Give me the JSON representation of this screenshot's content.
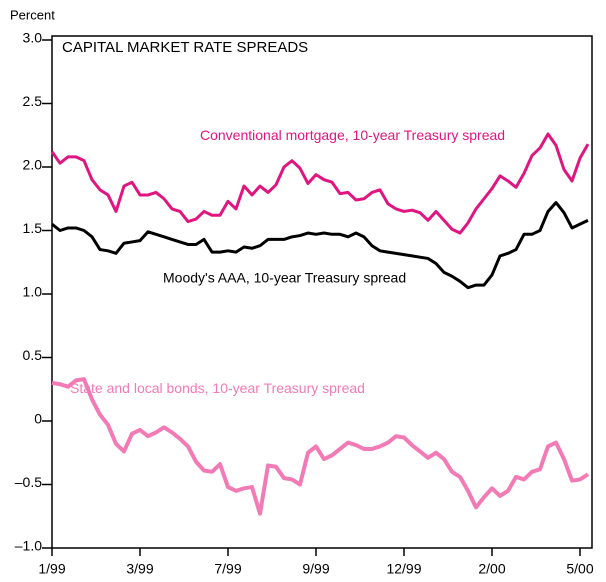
{
  "chart_data": {
    "type": "line",
    "title": "CAPITAL MARKET RATE SPREADS",
    "y_label": "Percent",
    "x": [
      0,
      1,
      2,
      3,
      4,
      5,
      6,
      7,
      8,
      9,
      10,
      11,
      12,
      13,
      14,
      15,
      16,
      17,
      18,
      19,
      20,
      21,
      22,
      23,
      24,
      25,
      26,
      27,
      28,
      29,
      30,
      31,
      32,
      33,
      34,
      35,
      36,
      37,
      38,
      39,
      40,
      41,
      42,
      43,
      44,
      45,
      46,
      47,
      48,
      49,
      50,
      51,
      52,
      53,
      54,
      55,
      56,
      57,
      58,
      59,
      60,
      61,
      62,
      63,
      64,
      65,
      66,
      67
    ],
    "xlim": [
      0,
      67.5
    ],
    "xticks": [
      {
        "value": 0,
        "label": "1/99"
      },
      {
        "value": 11,
        "label": "3/99"
      },
      {
        "value": 22,
        "label": "7/99"
      },
      {
        "value": 33,
        "label": "9/99"
      },
      {
        "value": 44,
        "label": "12/99"
      },
      {
        "value": 55,
        "label": "2/00"
      },
      {
        "value": 66,
        "label": "5/00"
      }
    ],
    "ylim": [
      -1,
      3
    ],
    "yticks": [
      {
        "value": 3,
        "label": "3.0"
      },
      {
        "value": 2.5,
        "label": "2.5"
      },
      {
        "value": 2,
        "label": "2.0"
      },
      {
        "value": 1.5,
        "label": "1.5"
      },
      {
        "value": 1,
        "label": "1.0"
      },
      {
        "value": 0.5,
        "label": "0.5"
      },
      0,
      {
        "value": -0.5,
        "label": "–0.5"
      },
      {
        "value": -1,
        "label": "–1.0"
      }
    ],
    "series": [
      {
        "name": "Conventional mortgage, 10-year Treasury spread",
        "color": "#e0157f",
        "values": [
          2.12,
          2.03,
          2.08,
          2.08,
          2.05,
          1.9,
          1.82,
          1.78,
          1.65,
          1.85,
          1.88,
          1.78,
          1.78,
          1.8,
          1.75,
          1.67,
          1.65,
          1.57,
          1.59,
          1.65,
          1.62,
          1.62,
          1.73,
          1.67,
          1.85,
          1.78,
          1.85,
          1.8,
          1.86,
          2.0,
          2.05,
          1.99,
          1.87,
          1.94,
          1.9,
          1.88,
          1.79,
          1.8,
          1.74,
          1.75,
          1.8,
          1.82,
          1.71,
          1.67,
          1.65,
          1.66,
          1.64,
          1.58,
          1.65,
          1.58,
          1.51,
          1.48,
          1.56,
          1.67,
          1.75,
          1.83,
          1.93,
          1.89,
          1.84,
          1.95,
          2.09,
          2.15,
          2.26,
          2.17,
          1.98,
          1.89,
          2.07,
          2.18
        ]
      },
      {
        "name": "Moody's AAA, 10-year Treasury spread",
        "color": "#000000",
        "values": [
          1.55,
          1.5,
          1.52,
          1.52,
          1.5,
          1.45,
          1.35,
          1.34,
          1.32,
          1.4,
          1.41,
          1.42,
          1.49,
          1.47,
          1.45,
          1.43,
          1.41,
          1.39,
          1.39,
          1.43,
          1.33,
          1.33,
          1.34,
          1.33,
          1.37,
          1.36,
          1.38,
          1.43,
          1.43,
          1.43,
          1.45,
          1.46,
          1.48,
          1.47,
          1.48,
          1.47,
          1.47,
          1.45,
          1.48,
          1.45,
          1.38,
          1.34,
          1.33,
          1.32,
          1.31,
          1.3,
          1.29,
          1.28,
          1.24,
          1.17,
          1.14,
          1.1,
          1.05,
          1.07,
          1.07,
          1.15,
          1.3,
          1.32,
          1.35,
          1.47,
          1.47,
          1.5,
          1.65,
          1.72,
          1.64,
          1.52,
          1.55,
          1.58
        ]
      },
      {
        "name": "State and local bonds, 10-year Treasury spread",
        "color": "#f27ab5",
        "values": [
          0.3,
          0.29,
          0.27,
          0.32,
          0.33,
          0.17,
          0.05,
          -0.03,
          -0.18,
          -0.24,
          -0.1,
          -0.07,
          -0.12,
          -0.09,
          -0.05,
          -0.09,
          -0.14,
          -0.2,
          -0.32,
          -0.39,
          -0.4,
          -0.34,
          -0.52,
          -0.55,
          -0.53,
          -0.52,
          -0.73,
          -0.35,
          -0.36,
          -0.45,
          -0.46,
          -0.5,
          -0.25,
          -0.2,
          -0.3,
          -0.27,
          -0.22,
          -0.17,
          -0.19,
          -0.22,
          -0.22,
          -0.2,
          -0.17,
          -0.12,
          -0.13,
          -0.19,
          -0.24,
          -0.29,
          -0.25,
          -0.3,
          -0.4,
          -0.44,
          -0.55,
          -0.68,
          -0.6,
          -0.53,
          -0.59,
          -0.55,
          -0.44,
          -0.46,
          -0.4,
          -0.38,
          -0.2,
          -0.17,
          -0.3,
          -0.47,
          -0.46,
          -0.42
        ]
      }
    ]
  }
}
